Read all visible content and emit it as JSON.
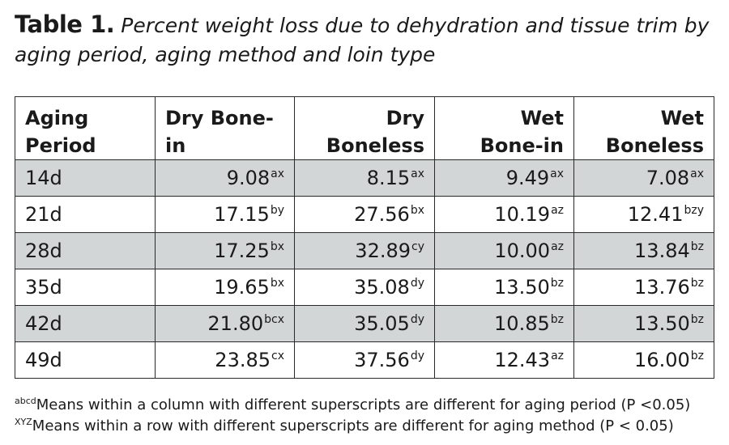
{
  "caption": {
    "label": "Table 1.",
    "text": "Percent weight loss due to dehydration and tissue trim by aging period, aging method and loin type"
  },
  "table": {
    "headers": [
      {
        "line1": "Aging",
        "line2": "Period"
      },
      {
        "line1": "Dry Bone-in",
        "line2": ""
      },
      {
        "line1": "Dry",
        "line2": "Boneless"
      },
      {
        "line1": "Wet",
        "line2": "Bone-in"
      },
      {
        "line1": "Wet",
        "line2": "Boneless"
      }
    ],
    "rows": [
      {
        "period": "14d",
        "cells": [
          {
            "v": "9.08",
            "s": "ax"
          },
          {
            "v": "8.15",
            "s": "ax"
          },
          {
            "v": "9.49",
            "s": "ax"
          },
          {
            "v": "7.08",
            "s": "ax"
          }
        ]
      },
      {
        "period": "21d",
        "cells": [
          {
            "v": "17.15",
            "s": "by"
          },
          {
            "v": "27.56",
            "s": "bx"
          },
          {
            "v": "10.19",
            "s": "az"
          },
          {
            "v": "12.41",
            "s": "bzy"
          }
        ]
      },
      {
        "period": "28d",
        "cells": [
          {
            "v": "17.25",
            "s": "bx"
          },
          {
            "v": "32.89",
            "s": "cy"
          },
          {
            "v": "10.00",
            "s": "az"
          },
          {
            "v": "13.84",
            "s": "bz"
          }
        ]
      },
      {
        "period": "35d",
        "cells": [
          {
            "v": "19.65",
            "s": "bx"
          },
          {
            "v": "35.08",
            "s": "dy"
          },
          {
            "v": "13.50",
            "s": "bz"
          },
          {
            "v": "13.76",
            "s": "bz"
          }
        ]
      },
      {
        "period": "42d",
        "cells": [
          {
            "v": "21.80",
            "s": "bcx"
          },
          {
            "v": "35.05",
            "s": "dy"
          },
          {
            "v": "10.85",
            "s": "bz"
          },
          {
            "v": "13.50",
            "s": "bz"
          }
        ]
      },
      {
        "period": "49d",
        "cells": [
          {
            "v": "23.85",
            "s": "cx"
          },
          {
            "v": "37.56",
            "s": "dy"
          },
          {
            "v": "12.43",
            "s": "az"
          },
          {
            "v": "16.00",
            "s": "bz"
          }
        ]
      }
    ],
    "shaded_row_color": "#d3d6d6"
  },
  "notes": [
    {
      "sup": "abcd",
      "text": "Means within a column with different superscripts are different for aging period (P <0.05)"
    },
    {
      "sup": "XYZ",
      "text": "Means within a row with different superscripts are different for aging method (P < 0.05)"
    }
  ]
}
